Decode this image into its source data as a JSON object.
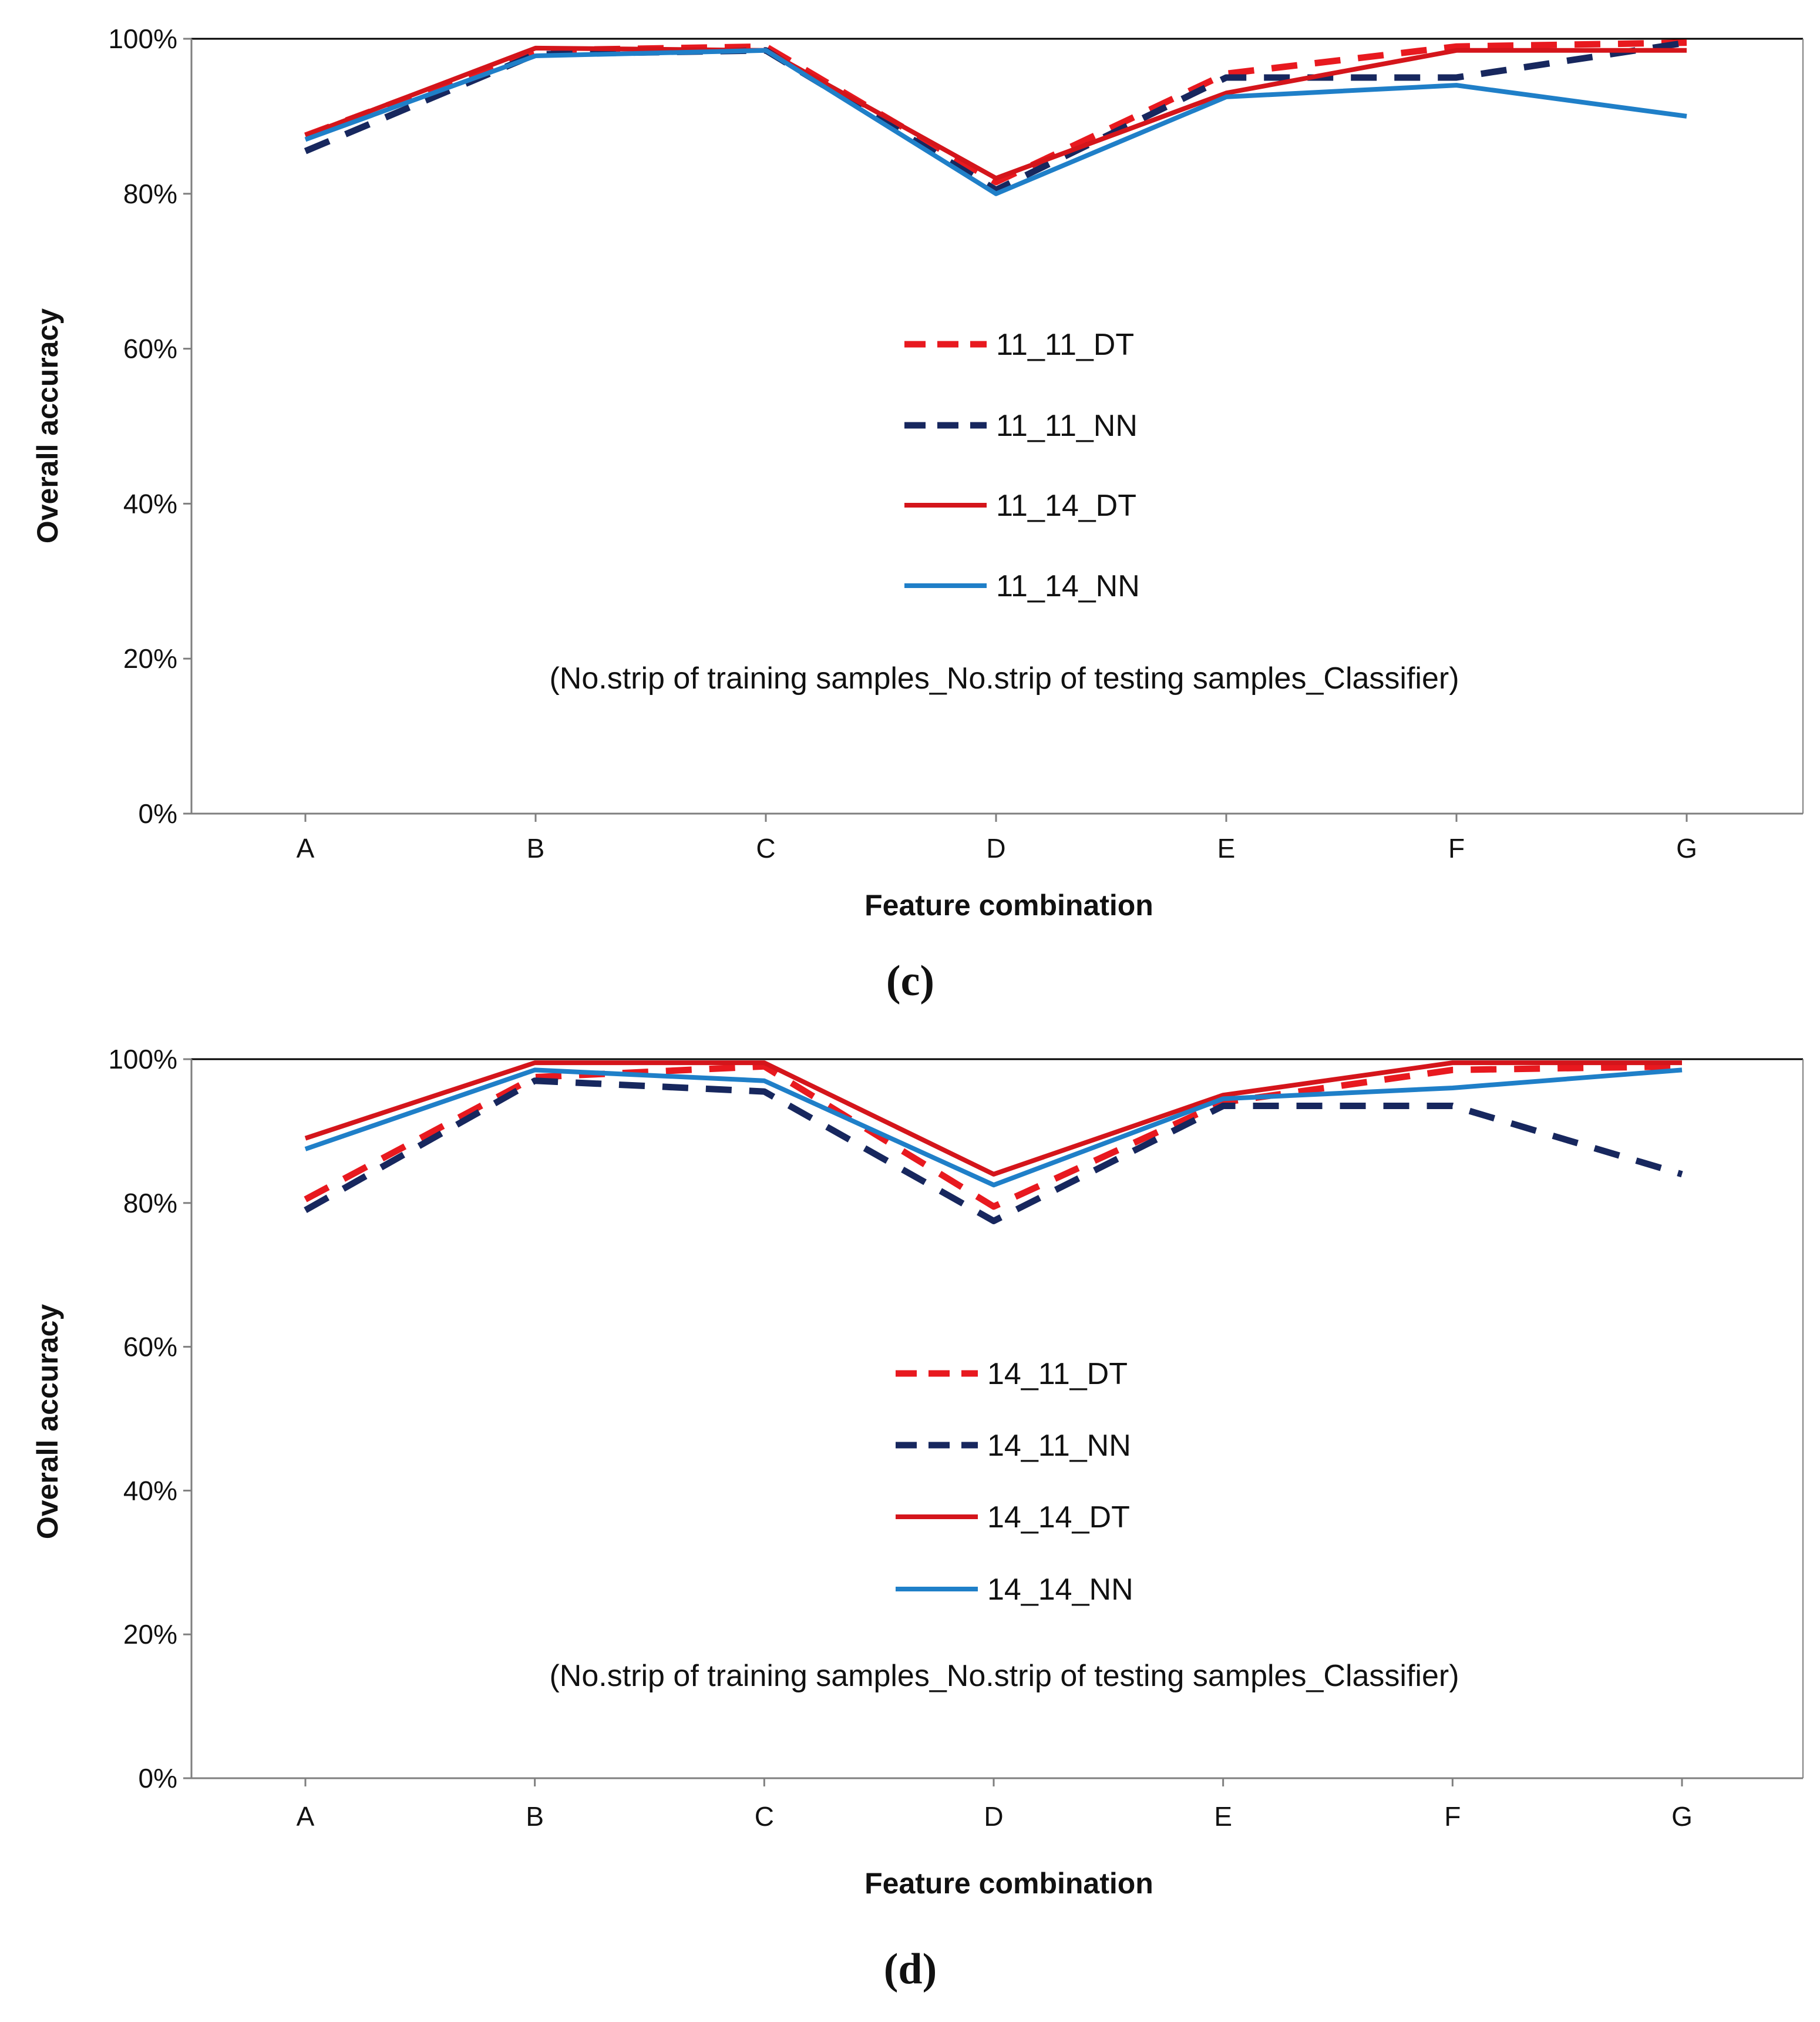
{
  "colors": {
    "dt_red": "#e8191f",
    "dt_solid_red": "#d4151b",
    "nn_navy": "#17275e",
    "nn_blue": "#1f7fc8",
    "axis": "#7f7f7f",
    "frame": "#000000"
  },
  "chart_data": [
    {
      "panel_label": "(c)",
      "type": "line",
      "xlabel": "Feature combination",
      "ylabel": "Overall accuracy",
      "ylim": [
        0,
        100
      ],
      "yticks": [
        "0%",
        "20%",
        "40%",
        "60%",
        "80%",
        "100%"
      ],
      "categories": [
        "A",
        "B",
        "C",
        "D",
        "E",
        "F",
        "G"
      ],
      "note": "(No.strip of training samples_No.strip of testing samples_Classifier)",
      "legend_position": "center",
      "series": [
        {
          "name": "11_11_DT",
          "style": "dashed",
          "color": "#e8191f",
          "values": [
            87.5,
            98.5,
            99.0,
            81.5,
            95.5,
            99.0,
            99.5
          ]
        },
        {
          "name": "11_11_NN",
          "style": "dashed",
          "color": "#17275e",
          "values": [
            85.5,
            98.0,
            98.5,
            80.5,
            95.0,
            95.0,
            99.5
          ]
        },
        {
          "name": "11_14_DT",
          "style": "solid",
          "color": "#d4151b",
          "values": [
            87.5,
            98.8,
            98.5,
            82.0,
            93.0,
            98.5,
            98.5
          ]
        },
        {
          "name": "11_14_NN",
          "style": "solid",
          "color": "#1f7fc8",
          "values": [
            87.0,
            97.8,
            98.5,
            80.0,
            92.5,
            94.0,
            90.0
          ]
        }
      ]
    },
    {
      "panel_label": "(d)",
      "type": "line",
      "xlabel": "Feature combination",
      "ylabel": "Overall accuracy",
      "ylim": [
        0,
        100
      ],
      "yticks": [
        "0%",
        "20%",
        "40%",
        "60%",
        "80%",
        "100%"
      ],
      "categories": [
        "A",
        "B",
        "C",
        "D",
        "E",
        "F",
        "G"
      ],
      "note": "(No.strip of training samples_No.strip of testing samples_Classifier)",
      "legend_position": "center",
      "series": [
        {
          "name": "14_11_DT",
          "style": "dashed",
          "color": "#e8191f",
          "values": [
            80.5,
            97.5,
            99.0,
            79.5,
            94.0,
            98.5,
            99.0
          ]
        },
        {
          "name": "14_11_NN",
          "style": "dashed",
          "color": "#17275e",
          "values": [
            79.0,
            97.0,
            95.5,
            77.5,
            93.5,
            93.5,
            84.0
          ]
        },
        {
          "name": "14_14_DT",
          "style": "solid",
          "color": "#d4151b",
          "values": [
            89.0,
            99.5,
            99.5,
            84.0,
            95.0,
            99.5,
            99.5
          ]
        },
        {
          "name": "14_14_NN",
          "style": "solid",
          "color": "#1f7fc8",
          "values": [
            87.5,
            98.5,
            97.0,
            82.5,
            94.5,
            96.0,
            98.5
          ]
        }
      ]
    }
  ]
}
